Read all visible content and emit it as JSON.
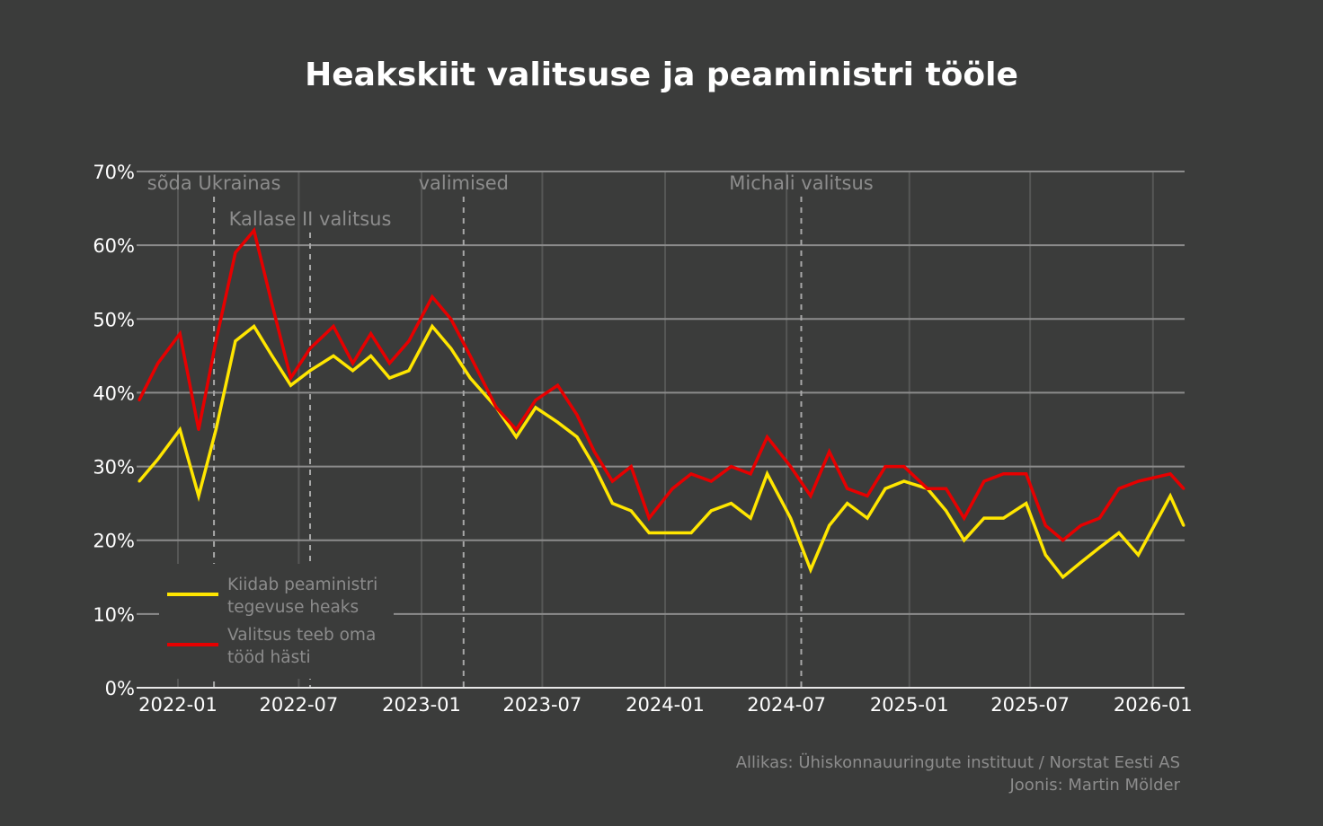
{
  "chart_data": {
    "type": "line",
    "title": "Heakskiit valitsuse ja peaministri tööle",
    "xlabel": "",
    "ylabel": "",
    "ylim": [
      0,
      70
    ],
    "yticks": [
      "0%",
      "10%",
      "20%",
      "30%",
      "40%",
      "50%",
      "60%",
      "70%"
    ],
    "ytick_values": [
      0,
      10,
      20,
      30,
      40,
      50,
      60,
      70
    ],
    "xlim": [
      "2021-11-01",
      "2026-02-16"
    ],
    "xticks": [
      "2022-01",
      "2022-07",
      "2023-01",
      "2023-07",
      "2024-01",
      "2024-07",
      "2025-01",
      "2025-07",
      "2026-01"
    ],
    "grid": true,
    "legend_position": "bottom-left",
    "x": [
      "2021-11-04",
      "2021-12-02",
      "2022-01-04",
      "2022-02-01",
      "2022-02-27",
      "2022-03-28",
      "2022-04-25",
      "2022-05-22",
      "2022-06-19",
      "2022-07-18",
      "2022-08-22",
      "2022-09-20",
      "2022-10-17",
      "2022-11-14",
      "2022-12-13",
      "2023-01-17",
      "2023-02-14",
      "2023-03-15",
      "2023-04-23",
      "2023-05-23",
      "2023-06-21",
      "2023-07-24",
      "2023-08-22",
      "2023-09-17",
      "2023-10-14",
      "2023-11-11",
      "2023-12-08",
      "2024-01-12",
      "2024-02-09",
      "2024-03-10",
      "2024-04-09",
      "2024-05-08",
      "2024-06-02",
      "2024-07-07",
      "2024-08-06",
      "2024-09-03",
      "2024-09-30",
      "2024-10-30",
      "2024-11-26",
      "2024-12-24",
      "2025-01-28",
      "2025-02-25",
      "2025-03-24",
      "2025-04-23",
      "2025-05-22",
      "2025-06-25",
      "2025-07-24",
      "2025-08-19",
      "2025-09-15",
      "2025-10-13",
      "2025-11-11",
      "2025-12-10",
      "2026-01-27",
      "2026-02-16"
    ],
    "series": [
      {
        "name": "Kiidab peaministri tegevuse heaks",
        "color": "#ffe600",
        "values": [
          28,
          31,
          35,
          26,
          35,
          47,
          49,
          45,
          41,
          43,
          45,
          43,
          45,
          42,
          43,
          49,
          46,
          42,
          38,
          34,
          38,
          36,
          34,
          30,
          25,
          24,
          21,
          21,
          21,
          24,
          25,
          23,
          29,
          23,
          16,
          22,
          25,
          23,
          27,
          28,
          27,
          24,
          20,
          23,
          23,
          25,
          18,
          15,
          17,
          19,
          21,
          18,
          26,
          22
        ]
      },
      {
        "name": "Valitsus teeb oma tööd hästi",
        "color": "#e60000",
        "values": [
          39,
          44,
          48,
          35,
          47,
          59,
          62,
          52,
          42,
          46,
          49,
          44,
          48,
          44,
          47,
          53,
          50,
          45,
          38,
          35,
          39,
          41,
          37,
          32,
          28,
          30,
          23,
          27,
          29,
          28,
          30,
          29,
          34,
          30,
          26,
          32,
          27,
          26,
          30,
          30,
          27,
          27,
          23,
          28,
          29,
          29,
          22,
          20,
          22,
          23,
          27,
          28,
          29,
          27
        ]
      }
    ],
    "legend_lines": [
      [
        "Kiidab peaministri",
        "tegevuse heaks"
      ],
      [
        "Valitsus teeb oma",
        "tööd hästi"
      ]
    ],
    "annotations": [
      {
        "date": "2022-02-24",
        "label": "sõda Ukrainas"
      },
      {
        "date": "2022-07-18",
        "label": "Kallase II valitsus"
      },
      {
        "date": "2023-03-05",
        "label": "valimised"
      },
      {
        "date": "2024-07-23",
        "label": "Michali valitsus"
      }
    ]
  },
  "footer": {
    "source": "Allikas: Ühiskonnauuringute instituut / Norstat Eesti AS",
    "author": "Joonis: Martin Mölder"
  },
  "colors": {
    "background": "#3b3c3b",
    "grid_horizontal": "#8c8c8c",
    "grid_vertical": "#565756",
    "annotation": "#8c8c8c"
  }
}
